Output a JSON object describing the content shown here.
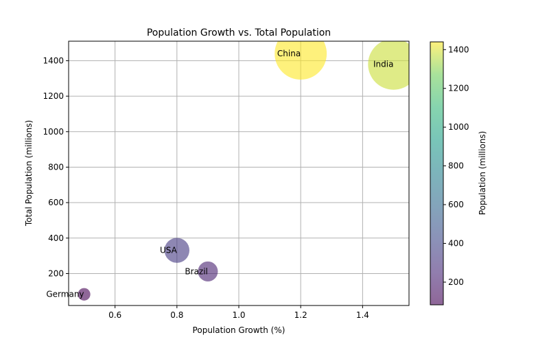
{
  "chart_data": {
    "type": "scatter",
    "title": "Population Growth vs. Total Population",
    "xlabel": "Population Growth (%)",
    "ylabel": "Total Population (millions)",
    "xlim": [
      0.45,
      1.55
    ],
    "ylim": [
      20,
      1510
    ],
    "xticks": [
      0.6,
      0.8,
      1.0,
      1.2,
      1.4
    ],
    "xtick_labels": [
      "0.6",
      "0.8",
      "1.0",
      "1.2",
      "1.4"
    ],
    "yticks": [
      200,
      400,
      600,
      800,
      1000,
      1200,
      1400
    ],
    "ytick_labels": [
      "200",
      "400",
      "600",
      "800",
      "1000",
      "1200",
      "1400"
    ],
    "grid": true,
    "size_encoding": "population",
    "color_encoding": "population",
    "colormap": "viridis",
    "marker_alpha": 0.6,
    "points": [
      {
        "label": "China",
        "x": 1.2,
        "y": 1440,
        "size": 1440
      },
      {
        "label": "India",
        "x": 1.5,
        "y": 1380,
        "size": 1380
      },
      {
        "label": "USA",
        "x": 0.8,
        "y": 331,
        "size": 331
      },
      {
        "label": "Brazil",
        "x": 0.9,
        "y": 212,
        "size": 212
      },
      {
        "label": "Germany",
        "x": 0.5,
        "y": 83,
        "size": 83
      }
    ],
    "colorbar": {
      "label": "Population (millions)",
      "range": [
        83,
        1440
      ],
      "ticks": [
        200,
        400,
        600,
        800,
        1000,
        1200,
        1400
      ],
      "tick_labels": [
        "200",
        "400",
        "600",
        "800",
        "1000",
        "1200",
        "1400"
      ]
    }
  }
}
